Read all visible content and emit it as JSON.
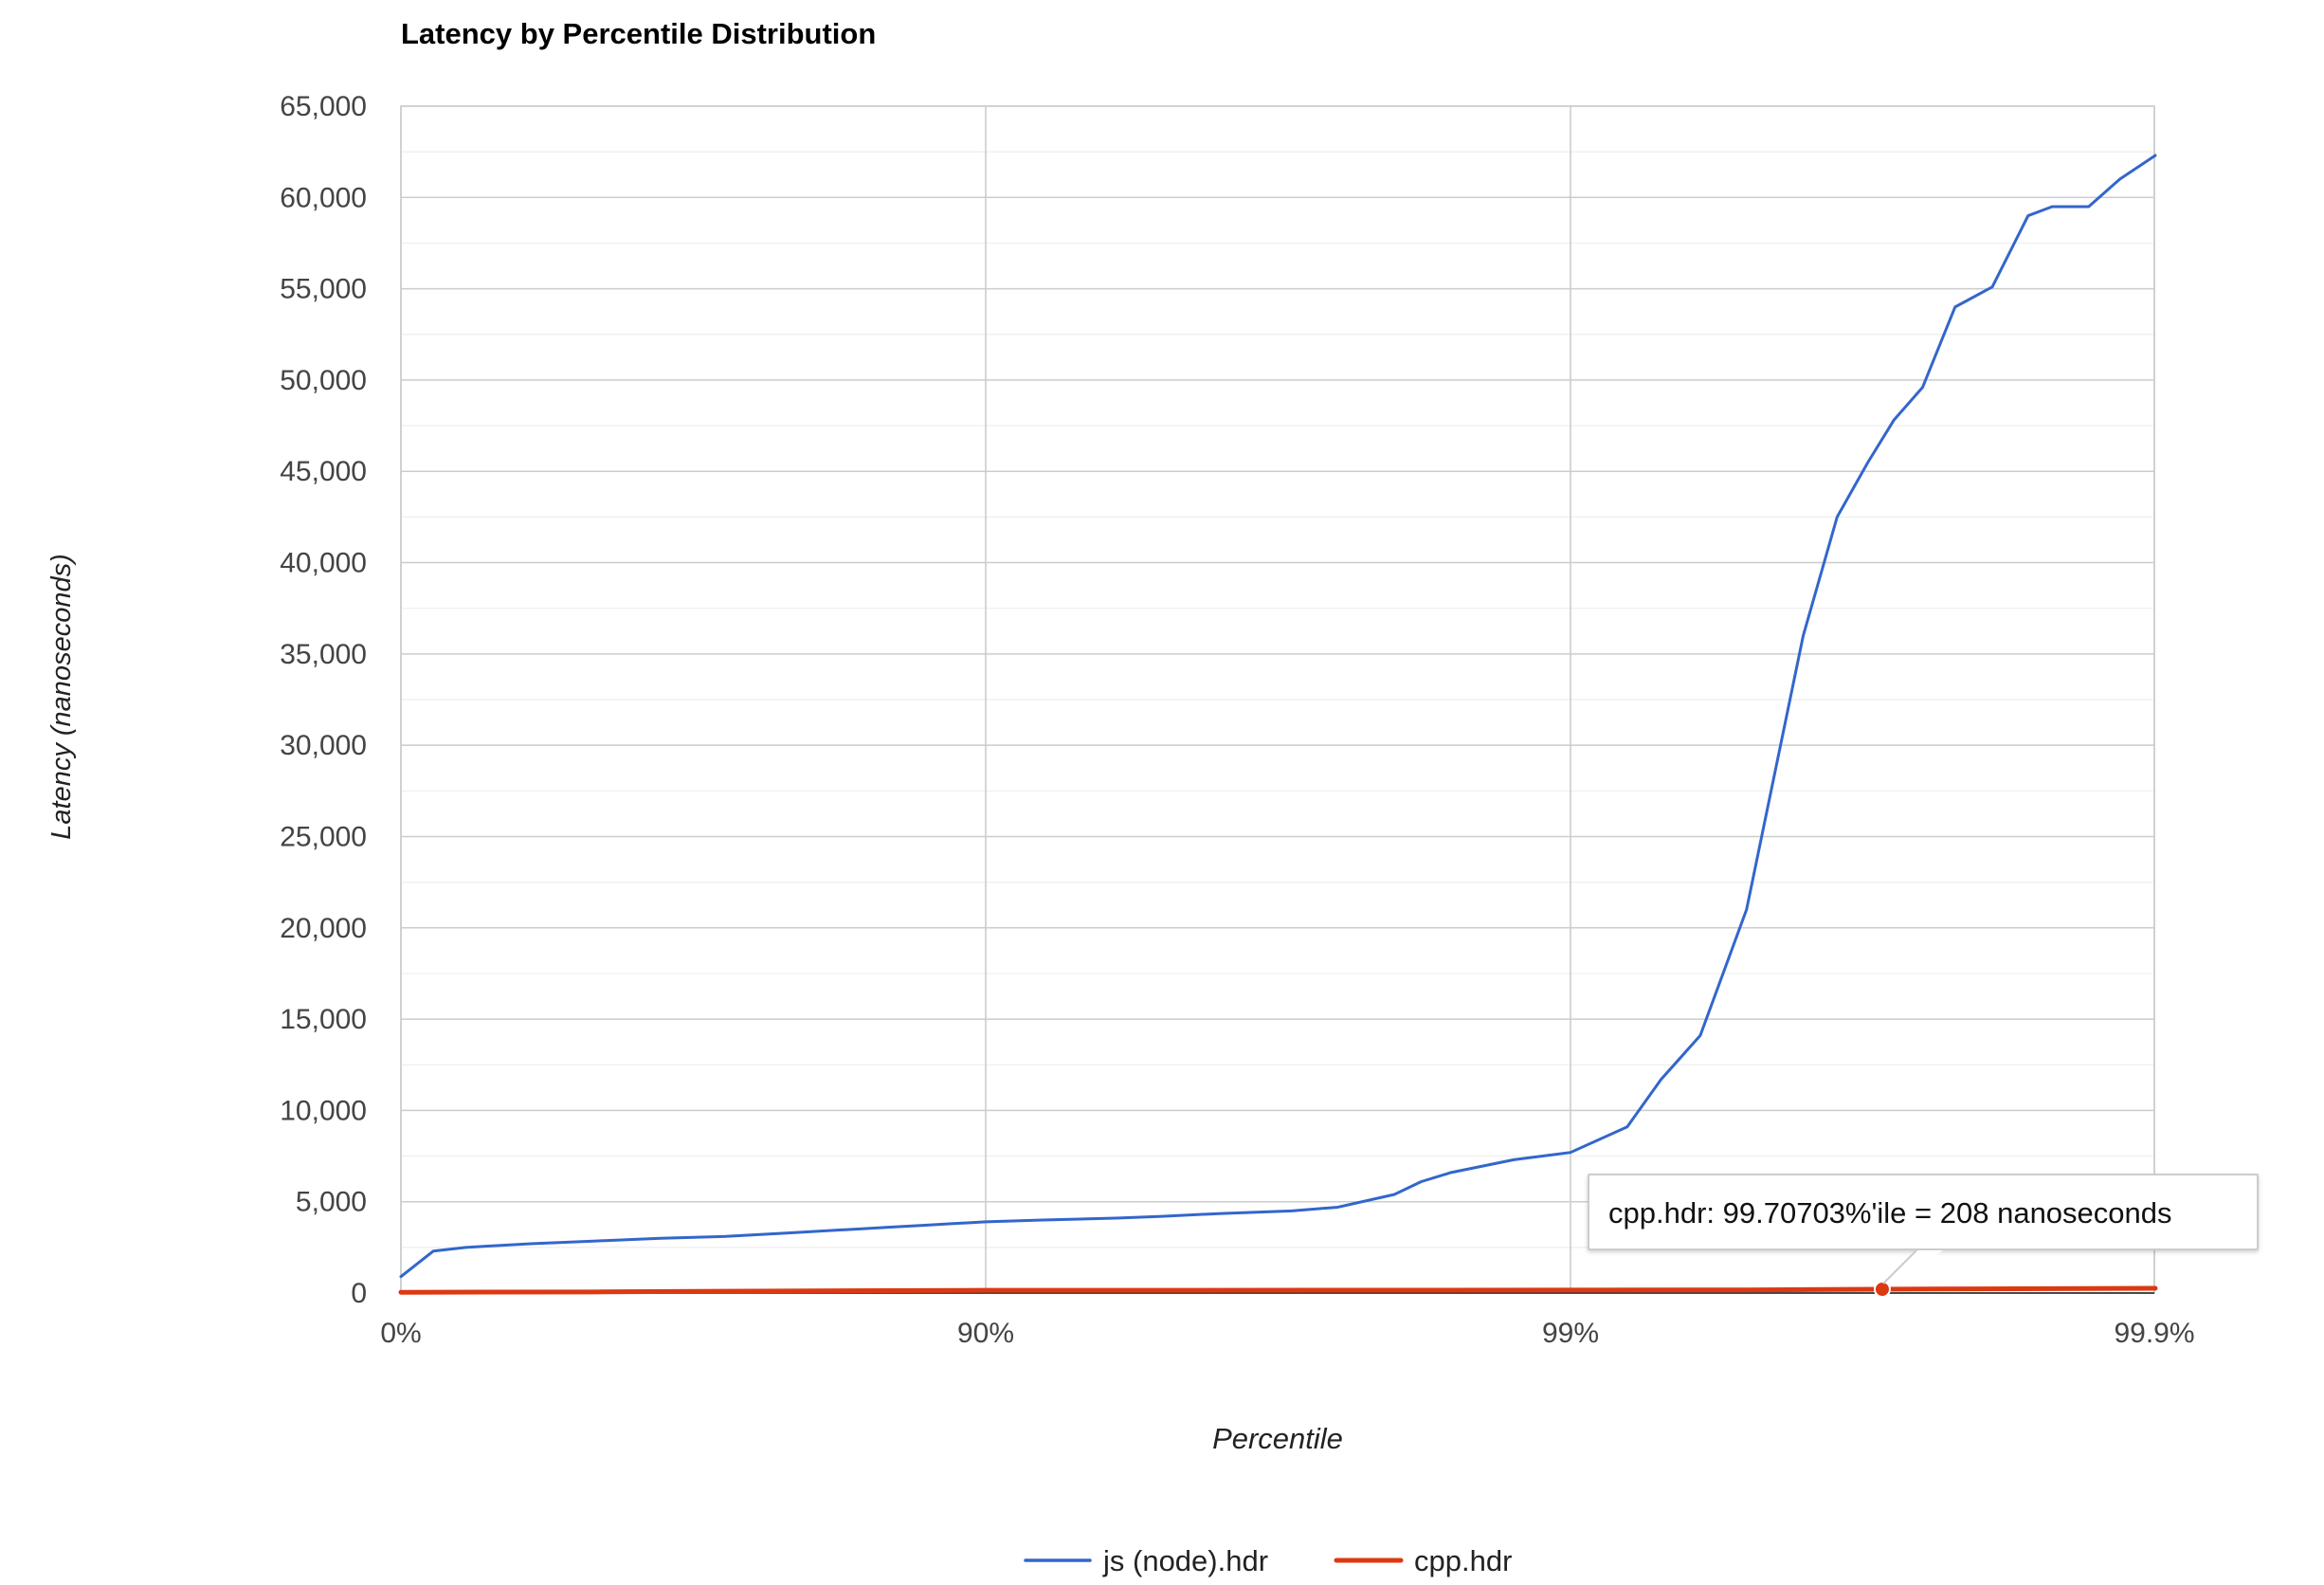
{
  "chart_data": {
    "type": "line",
    "title": "Latency by Percentile Distribution",
    "xlabel": "Percentile",
    "ylabel": "Latency (nanoseconds)",
    "x_scale": "log-inverse-percentile",
    "x_ticks": [
      "0%",
      "90%",
      "99%",
      "99.9%"
    ],
    "y_ticks": [
      "0",
      "5,000",
      "10,000",
      "15,000",
      "20,000",
      "25,000",
      "30,000",
      "35,000",
      "40,000",
      "45,000",
      "50,000",
      "55,000",
      "60,000",
      "65,000"
    ],
    "ylim": [
      0,
      65000
    ],
    "xlim": [
      "0%",
      "99.9%"
    ],
    "grid": true,
    "legend_position": "bottom",
    "series": [
      {
        "name": "js (node).hdr",
        "color": "#3366cc",
        "points": [
          {
            "x": 0,
            "y": 900
          },
          {
            "x": 5,
            "y": 2300
          },
          {
            "x": 10,
            "y": 2500
          },
          {
            "x": 20,
            "y": 2700
          },
          {
            "x": 30,
            "y": 2850
          },
          {
            "x": 40,
            "y": 3000
          },
          {
            "x": 50,
            "y": 3100
          },
          {
            "x": 60,
            "y": 3300
          },
          {
            "x": 70,
            "y": 3500
          },
          {
            "x": 75,
            "y": 3600
          },
          {
            "x": 80,
            "y": 3700
          },
          {
            "x": 85,
            "y": 3800
          },
          {
            "x": 90,
            "y": 3900
          },
          {
            "x": 92,
            "y": 4000
          },
          {
            "x": 94,
            "y": 4100
          },
          {
            "x": 95,
            "y": 4200
          },
          {
            "x": 96,
            "y": 4350
          },
          {
            "x": 97,
            "y": 4500
          },
          {
            "x": 97.5,
            "y": 4700
          },
          {
            "x": 98,
            "y": 5400
          },
          {
            "x": 98.2,
            "y": 6100
          },
          {
            "x": 98.4,
            "y": 6600
          },
          {
            "x": 98.75,
            "y": 7300
          },
          {
            "x": 99,
            "y": 7700
          },
          {
            "x": 99.2,
            "y": 9100
          },
          {
            "x": 99.3,
            "y": 11700
          },
          {
            "x": 99.4,
            "y": 14100
          },
          {
            "x": 99.5,
            "y": 21000
          },
          {
            "x": 99.6,
            "y": 36000
          },
          {
            "x": 99.65,
            "y": 42500
          },
          {
            "x": 99.69,
            "y": 45500
          },
          {
            "x": 99.72,
            "y": 47800
          },
          {
            "x": 99.75,
            "y": 49600
          },
          {
            "x": 99.78,
            "y": 54000
          },
          {
            "x": 99.81,
            "y": 55100
          },
          {
            "x": 99.835,
            "y": 59000
          },
          {
            "x": 99.85,
            "y": 59500
          },
          {
            "x": 99.87,
            "y": 59500
          },
          {
            "x": 99.885,
            "y": 61000
          },
          {
            "x": 99.9,
            "y": 62300
          }
        ]
      },
      {
        "name": "cpp.hdr",
        "color": "#dc3912",
        "points": [
          {
            "x": 0,
            "y": 42
          },
          {
            "x": 30,
            "y": 60
          },
          {
            "x": 50,
            "y": 100
          },
          {
            "x": 80,
            "y": 135
          },
          {
            "x": 90,
            "y": 150
          },
          {
            "x": 95,
            "y": 150
          },
          {
            "x": 99,
            "y": 160
          },
          {
            "x": 99.5,
            "y": 170
          },
          {
            "x": 99.70703,
            "y": 208
          },
          {
            "x": 99.8,
            "y": 230
          },
          {
            "x": 99.85,
            "y": 240
          },
          {
            "x": 99.9,
            "y": 260
          }
        ]
      }
    ],
    "tooltip": {
      "text": "cpp.hdr: 99.70703%'ile = 208 nanoseconds",
      "series": "cpp.hdr",
      "x": 99.70703,
      "y": 208
    }
  }
}
